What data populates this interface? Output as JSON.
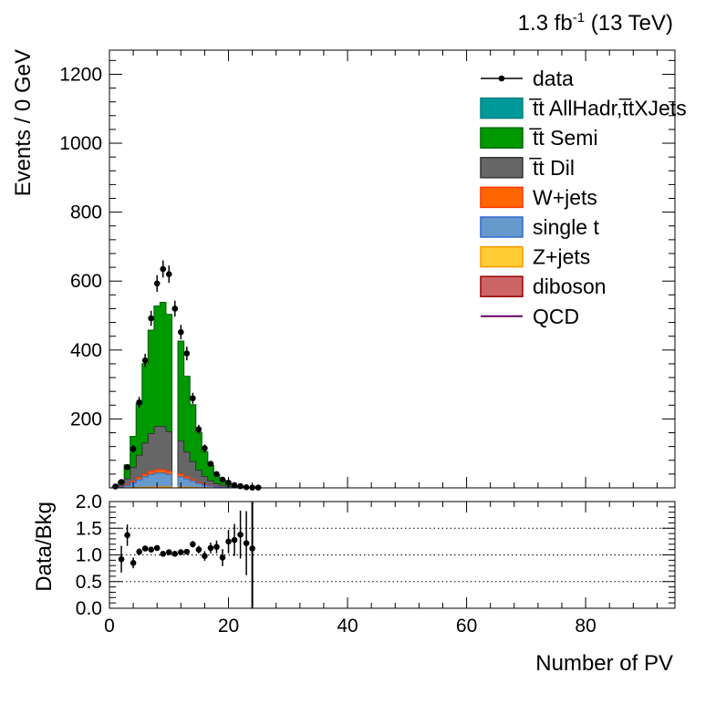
{
  "header": {
    "lumi_label": "1.3 fb",
    "lumi_sup": "-1",
    "energy_label": " (13 TeV)"
  },
  "chart_data": {
    "type": "bar",
    "xlabel": "Number of PV",
    "ylabel": "Events / 0 GeV",
    "ratio_ylabel": "Data/Bkg",
    "xlim": [
      0,
      95
    ],
    "ylim": [
      0,
      1270
    ],
    "ratio_ylim": [
      0,
      2
    ],
    "x_ticks": [
      0,
      20,
      40,
      60,
      80
    ],
    "y_ticks": [
      200,
      400,
      600,
      800,
      1000,
      1200
    ],
    "ratio_ticks": [
      0.0,
      0.5,
      1.0,
      1.5,
      2.0
    ],
    "ratio_tick_labels": [
      "0.0",
      "0.5",
      "1.0",
      "1.5",
      "2.0"
    ],
    "ratio_grid": [
      0.5,
      1.0,
      1.5
    ],
    "bins": [
      1,
      2,
      3,
      4,
      5,
      6,
      7,
      8,
      9,
      10,
      11,
      12,
      13,
      14,
      15,
      16,
      17,
      18,
      19,
      20,
      21,
      22,
      23,
      24,
      25
    ],
    "series": [
      {
        "name": "diboson",
        "color": "#cc6666",
        "values": [
          0,
          0,
          0,
          0,
          0,
          0,
          0,
          0,
          0,
          0,
          0,
          0,
          0,
          0,
          0,
          0,
          0,
          0,
          0,
          0,
          0,
          0,
          0,
          0,
          0
        ]
      },
      {
        "name": "Z+jets",
        "color": "#ffcc33",
        "values": [
          0,
          0,
          0.5,
          1,
          1.5,
          2,
          2.5,
          3,
          3,
          3,
          0,
          2.5,
          2,
          1.5,
          1,
          1,
          0.5,
          0,
          0,
          0,
          0,
          0,
          0,
          0,
          0
        ]
      },
      {
        "name": "single t",
        "color": "#6699cc",
        "values": [
          0.5,
          2,
          6,
          14,
          22,
          30,
          36,
          40,
          40,
          36,
          0,
          30,
          24,
          18,
          12,
          8,
          5,
          3,
          2,
          1,
          0.5,
          0,
          0,
          0,
          0
        ]
      },
      {
        "name": "W+jets",
        "color": "#ff6600",
        "values": [
          0.3,
          1,
          2,
          4,
          6,
          8,
          9,
          10,
          10,
          9,
          0,
          8,
          6,
          4.5,
          3,
          2,
          1.5,
          1,
          0.5,
          0.3,
          0,
          0,
          0,
          0,
          0
        ]
      },
      {
        "name": "t̅t Dil",
        "color": "#666666",
        "values": [
          1,
          5,
          18,
          40,
          65,
          90,
          110,
          125,
          125,
          115,
          0,
          95,
          72,
          52,
          35,
          22,
          14,
          8,
          5,
          2.5,
          1.5,
          1,
          0,
          0,
          0
        ]
      },
      {
        "name": "t̅t Semi",
        "color": "#009900",
        "values": [
          2,
          10,
          40,
          90,
          150,
          230,
          300,
          350,
          360,
          340,
          0,
          290,
          220,
          165,
          110,
          72,
          44,
          26,
          15,
          8,
          4.5,
          2,
          1,
          0.5,
          0.2
        ]
      },
      {
        "name": "t̅t AllHadr,t̅tXJets",
        "color": "#009999",
        "values": [
          0,
          0,
          0,
          0,
          0,
          0,
          0,
          0,
          0,
          0,
          0,
          0,
          0,
          0,
          0,
          0,
          0,
          0,
          0,
          0,
          0,
          0,
          0,
          0,
          0
        ]
      },
      {
        "name": "QCD",
        "color": "#660066",
        "values": [
          0,
          0,
          0,
          0,
          0,
          0,
          0,
          0,
          0,
          0,
          0,
          0,
          0,
          0,
          0,
          0,
          0,
          0,
          0,
          0,
          0,
          0,
          0,
          0,
          0
        ]
      }
    ],
    "data": {
      "name": "data",
      "x": [
        1,
        2,
        3,
        4,
        5,
        6,
        7,
        8,
        9,
        10,
        11,
        12,
        13,
        14,
        15,
        16,
        17,
        18,
        19,
        20,
        21,
        22,
        23,
        24,
        25
      ],
      "y": [
        4,
        17,
        60,
        113,
        248,
        370,
        492,
        593,
        635,
        620,
        520,
        452,
        390,
        260,
        170,
        115,
        70,
        40,
        24,
        15,
        8,
        5,
        2,
        1,
        1
      ],
      "yerr": [
        2,
        4,
        8,
        11,
        16,
        19,
        22,
        24,
        25,
        25,
        23,
        21,
        20,
        16,
        13,
        11,
        8,
        6,
        5,
        4,
        3,
        2,
        1.5,
        1,
        1
      ]
    },
    "ratio": {
      "x": [
        2,
        3,
        4,
        5,
        6,
        7,
        8,
        9,
        10,
        11,
        12,
        13,
        14,
        15,
        16,
        17,
        18,
        19,
        20,
        21,
        22,
        23,
        24
      ],
      "y": [
        0.92,
        1.37,
        0.85,
        1.06,
        1.12,
        1.1,
        1.13,
        1.02,
        1.05,
        1.02,
        1.05,
        1.06,
        1.2,
        1.1,
        0.98,
        1.13,
        1.15,
        0.95,
        1.25,
        1.28,
        1.38,
        1.22,
        1.12
      ],
      "yerr": [
        0.25,
        0.2,
        0.1,
        0.06,
        0.05,
        0.045,
        0.04,
        0.04,
        0.04,
        0.04,
        0.045,
        0.05,
        0.06,
        0.07,
        0.09,
        0.1,
        0.12,
        0.16,
        0.22,
        0.3,
        0.45,
        0.6,
        0.05
      ]
    },
    "ratio_overflow_x": 24,
    "legend": {
      "placement": "top-right",
      "entries": [
        {
          "label": "data",
          "kind": "marker",
          "color": "#000000"
        },
        {
          "label": "t̅t AllHadr,t̅tXJets",
          "kind": "box",
          "color": "#009999",
          "edge": "#008080"
        },
        {
          "label": "t̅t Semi",
          "kind": "box",
          "color": "#009900",
          "edge": "#006600"
        },
        {
          "label": "t̅t Dil",
          "kind": "box",
          "color": "#666666",
          "edge": "#333333"
        },
        {
          "label": "W+jets",
          "kind": "box",
          "color": "#ff6600",
          "edge": "#ff3300"
        },
        {
          "label": "single t",
          "kind": "box",
          "color": "#6699cc",
          "edge": "#3366cc"
        },
        {
          "label": "Z+jets",
          "kind": "box",
          "color": "#ffcc33",
          "edge": "#ff9900"
        },
        {
          "label": "diboson",
          "kind": "box",
          "color": "#cc6666",
          "edge": "#990000"
        },
        {
          "label": "QCD",
          "kind": "line",
          "color": "#660066"
        }
      ]
    }
  }
}
